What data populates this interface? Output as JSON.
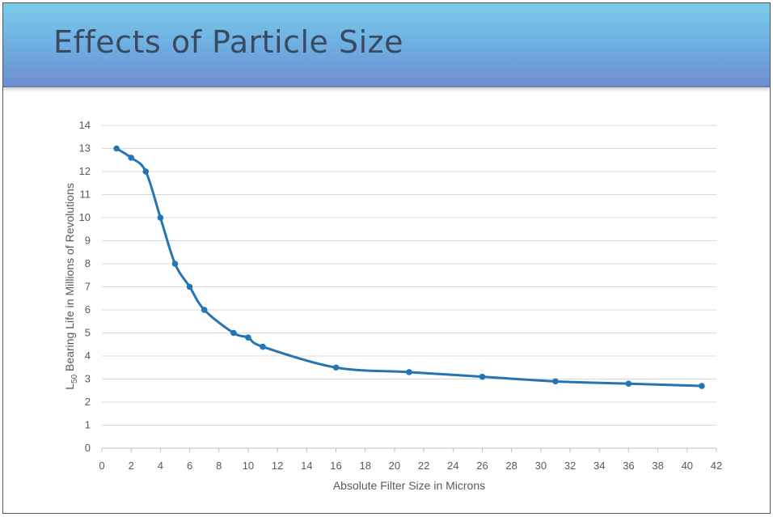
{
  "slide": {
    "title": "Effects of Particle Size"
  },
  "chart_data": {
    "type": "line",
    "title": "",
    "xlabel": "Absolute Filter Size in Microns",
    "ylabel": {
      "prefix": "L",
      "subscript": "50",
      "rest": " Bearing Life in Millions of Revolutions"
    },
    "xlim": [
      0,
      42
    ],
    "ylim": [
      0,
      14
    ],
    "x_ticks": [
      0,
      2,
      4,
      6,
      8,
      10,
      12,
      14,
      16,
      18,
      20,
      22,
      24,
      26,
      28,
      30,
      32,
      34,
      36,
      38,
      40,
      42
    ],
    "y_ticks": [
      0,
      1,
      2,
      3,
      4,
      5,
      6,
      7,
      8,
      9,
      10,
      11,
      12,
      13,
      14
    ],
    "grid": "horizontal",
    "smooth": true,
    "color": "#2475b3",
    "series": [
      {
        "x": [
          1,
          2,
          3,
          4,
          5,
          6,
          7,
          9,
          10,
          11,
          16,
          21,
          26,
          31,
          36,
          41
        ],
        "y": [
          13,
          12.6,
          12,
          10,
          8,
          7,
          6,
          5,
          4.8,
          4.4,
          3.5,
          3.3,
          3.1,
          2.9,
          2.8,
          2.7
        ]
      }
    ]
  }
}
